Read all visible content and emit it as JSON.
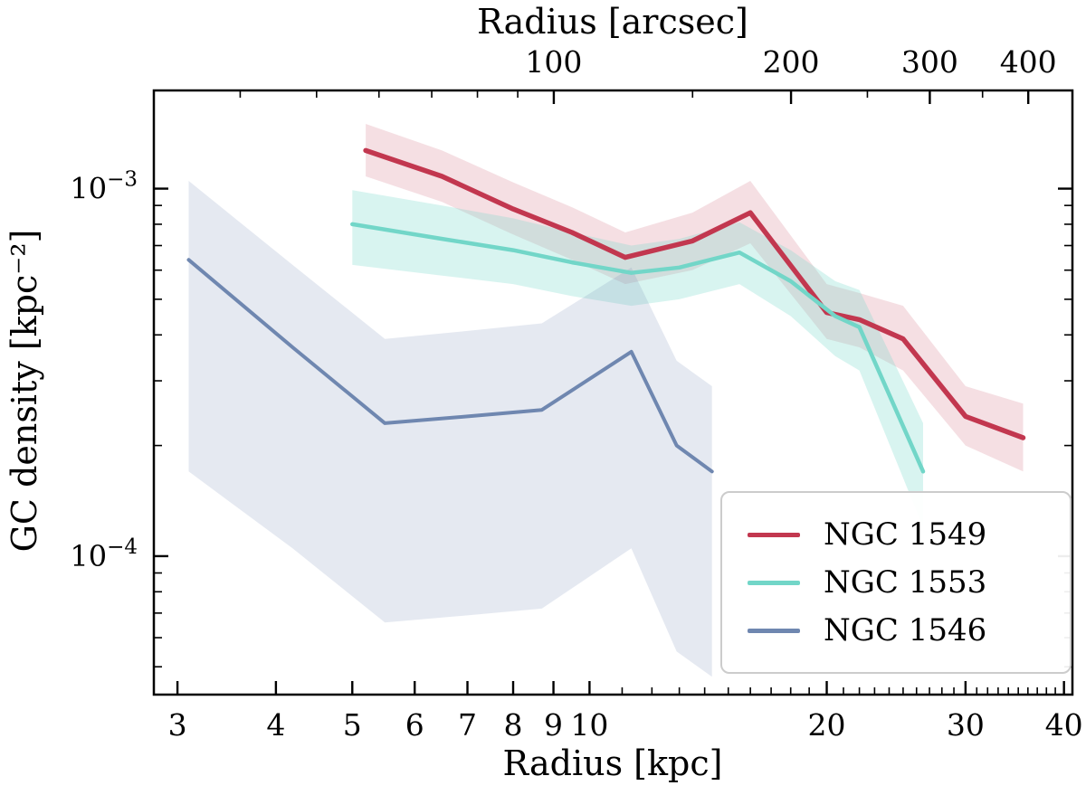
{
  "figure": {
    "background": "#ffffff",
    "frame_color": "#000000"
  },
  "chart_data": {
    "type": "line",
    "title": "",
    "xlabel_bottom": "Radius [kpc]",
    "xlabel_top": "Radius [arcsec]",
    "ylabel": "GC density [kpc⁻²]",
    "x_scale": "log",
    "y_scale": "log",
    "xlim": [
      2.8,
      41
    ],
    "ylim": [
      4.2e-05,
      0.00185
    ],
    "arcsec_per_kpc": 11.1,
    "x_major_ticks": [
      3,
      4,
      5,
      6,
      7,
      8,
      9,
      10,
      20,
      30,
      40
    ],
    "x_minor_ticks": [
      11,
      12,
      13,
      14,
      15,
      16,
      17,
      18,
      19,
      21,
      22,
      23,
      24,
      25,
      26,
      27,
      28,
      29,
      31,
      32,
      33,
      34,
      35,
      36,
      37,
      38,
      39
    ],
    "top_major_ticks": [
      100,
      200,
      300,
      400
    ],
    "top_minor_ticks": [
      40,
      50,
      60,
      70,
      80,
      90,
      150,
      250,
      350
    ],
    "y_major_ticks": [
      {
        "value": 0.001,
        "base": "10",
        "exp": "−3"
      },
      {
        "value": 0.0001,
        "base": "10",
        "exp": "−4"
      }
    ],
    "y_minor_ticks": [
      5e-05,
      6e-05,
      7e-05,
      8e-05,
      9e-05,
      0.0002,
      0.0003,
      0.0004,
      0.0005,
      0.0006,
      0.0007,
      0.0008,
      0.0009
    ],
    "legend_position": "lower right",
    "series": [
      {
        "name": "NGC 1549",
        "color": "#c2374f",
        "band_opacity": 0.16,
        "line_width": 5.5,
        "x": [
          5.2,
          6.5,
          8.0,
          9.5,
          11.1,
          13.5,
          16.0,
          20.0,
          22.0,
          25.0,
          30.0,
          35.5
        ],
        "y": [
          0.00127,
          0.00108,
          0.00088,
          0.00076,
          0.00065,
          0.00072,
          0.00086,
          0.00046,
          0.00044,
          0.00039,
          0.00024,
          0.00021
        ],
        "upper": [
          0.0015,
          0.00127,
          0.00104,
          0.00089,
          0.00076,
          0.00086,
          0.00105,
          0.00055,
          0.00052,
          0.00048,
          0.00029,
          0.00026
        ],
        "lower": [
          0.00108,
          0.00092,
          0.00075,
          0.00064,
          0.00055,
          0.0006,
          0.00071,
          0.00039,
          0.00037,
          0.00032,
          0.0002,
          0.00017
        ]
      },
      {
        "name": "NGC 1553",
        "color": "#72d6c8",
        "band_opacity": 0.28,
        "line_width": 4.5,
        "x": [
          5.0,
          6.5,
          8.0,
          9.5,
          11.3,
          13.0,
          15.5,
          18.0,
          20.5,
          22.0,
          26.5
        ],
        "y": [
          0.0008,
          0.00073,
          0.00068,
          0.00063,
          0.00059,
          0.00061,
          0.00067,
          0.00056,
          0.00045,
          0.00042,
          0.00017
        ],
        "upper": [
          0.00099,
          0.0009,
          0.00083,
          0.00076,
          0.0007,
          0.00073,
          0.00081,
          0.00068,
          0.00056,
          0.00053,
          0.00023
        ],
        "lower": [
          0.00062,
          0.00058,
          0.00055,
          0.00051,
          0.00048,
          0.0005,
          0.00055,
          0.00045,
          0.00035,
          0.00032,
          0.00012
        ]
      },
      {
        "name": "NGC 1546",
        "color": "#6f87b0",
        "band_opacity": 0.18,
        "line_width": 4.0,
        "x": [
          3.1,
          4.2,
          5.5,
          7.0,
          8.7,
          11.3,
          12.9,
          14.3
        ],
        "y": [
          0.00064,
          0.00037,
          0.00023,
          0.00024,
          0.00025,
          0.00036,
          0.0002,
          0.00017
        ],
        "upper": [
          0.00105,
          0.00062,
          0.00039,
          0.00041,
          0.00043,
          0.00061,
          0.00034,
          0.00029
        ],
        "lower": [
          0.00017,
          0.000105,
          6.6e-05,
          6.9e-05,
          7.2e-05,
          0.000105,
          5.5e-05,
          4.7e-05
        ]
      }
    ]
  }
}
